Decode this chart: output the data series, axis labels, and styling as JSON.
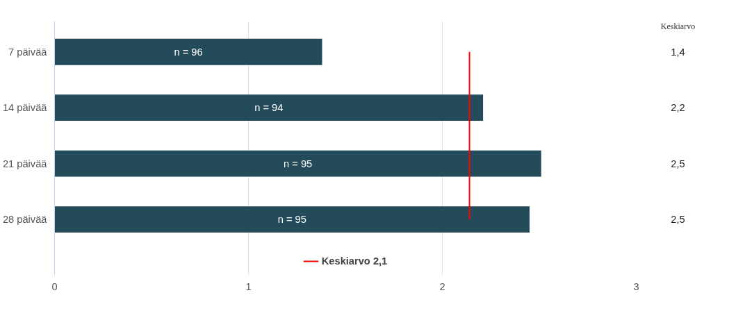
{
  "chart_data": {
    "type": "bar",
    "orientation": "horizontal",
    "categories": [
      "7 päivää",
      "14 päivää",
      "21 päivää",
      "28 päivää"
    ],
    "values": [
      1.38,
      2.21,
      2.51,
      2.45
    ],
    "color": "#234b5a",
    "xlim": [
      0,
      3
    ],
    "xticks": [
      0,
      1,
      2,
      3
    ],
    "grid": "x",
    "ref_lines": [
      {
        "axis": "x",
        "value": 2.14,
        "label": "Keskiarvo 2,1",
        "color": "#ff0000"
      }
    ],
    "annotations": [
      "Keskiarvo",
      "n = 96",
      "n = 94",
      "n = 95",
      "n = 95",
      "1,4",
      "2,2",
      "2,5",
      "2,5"
    ],
    "legend": "bottom"
  }
}
